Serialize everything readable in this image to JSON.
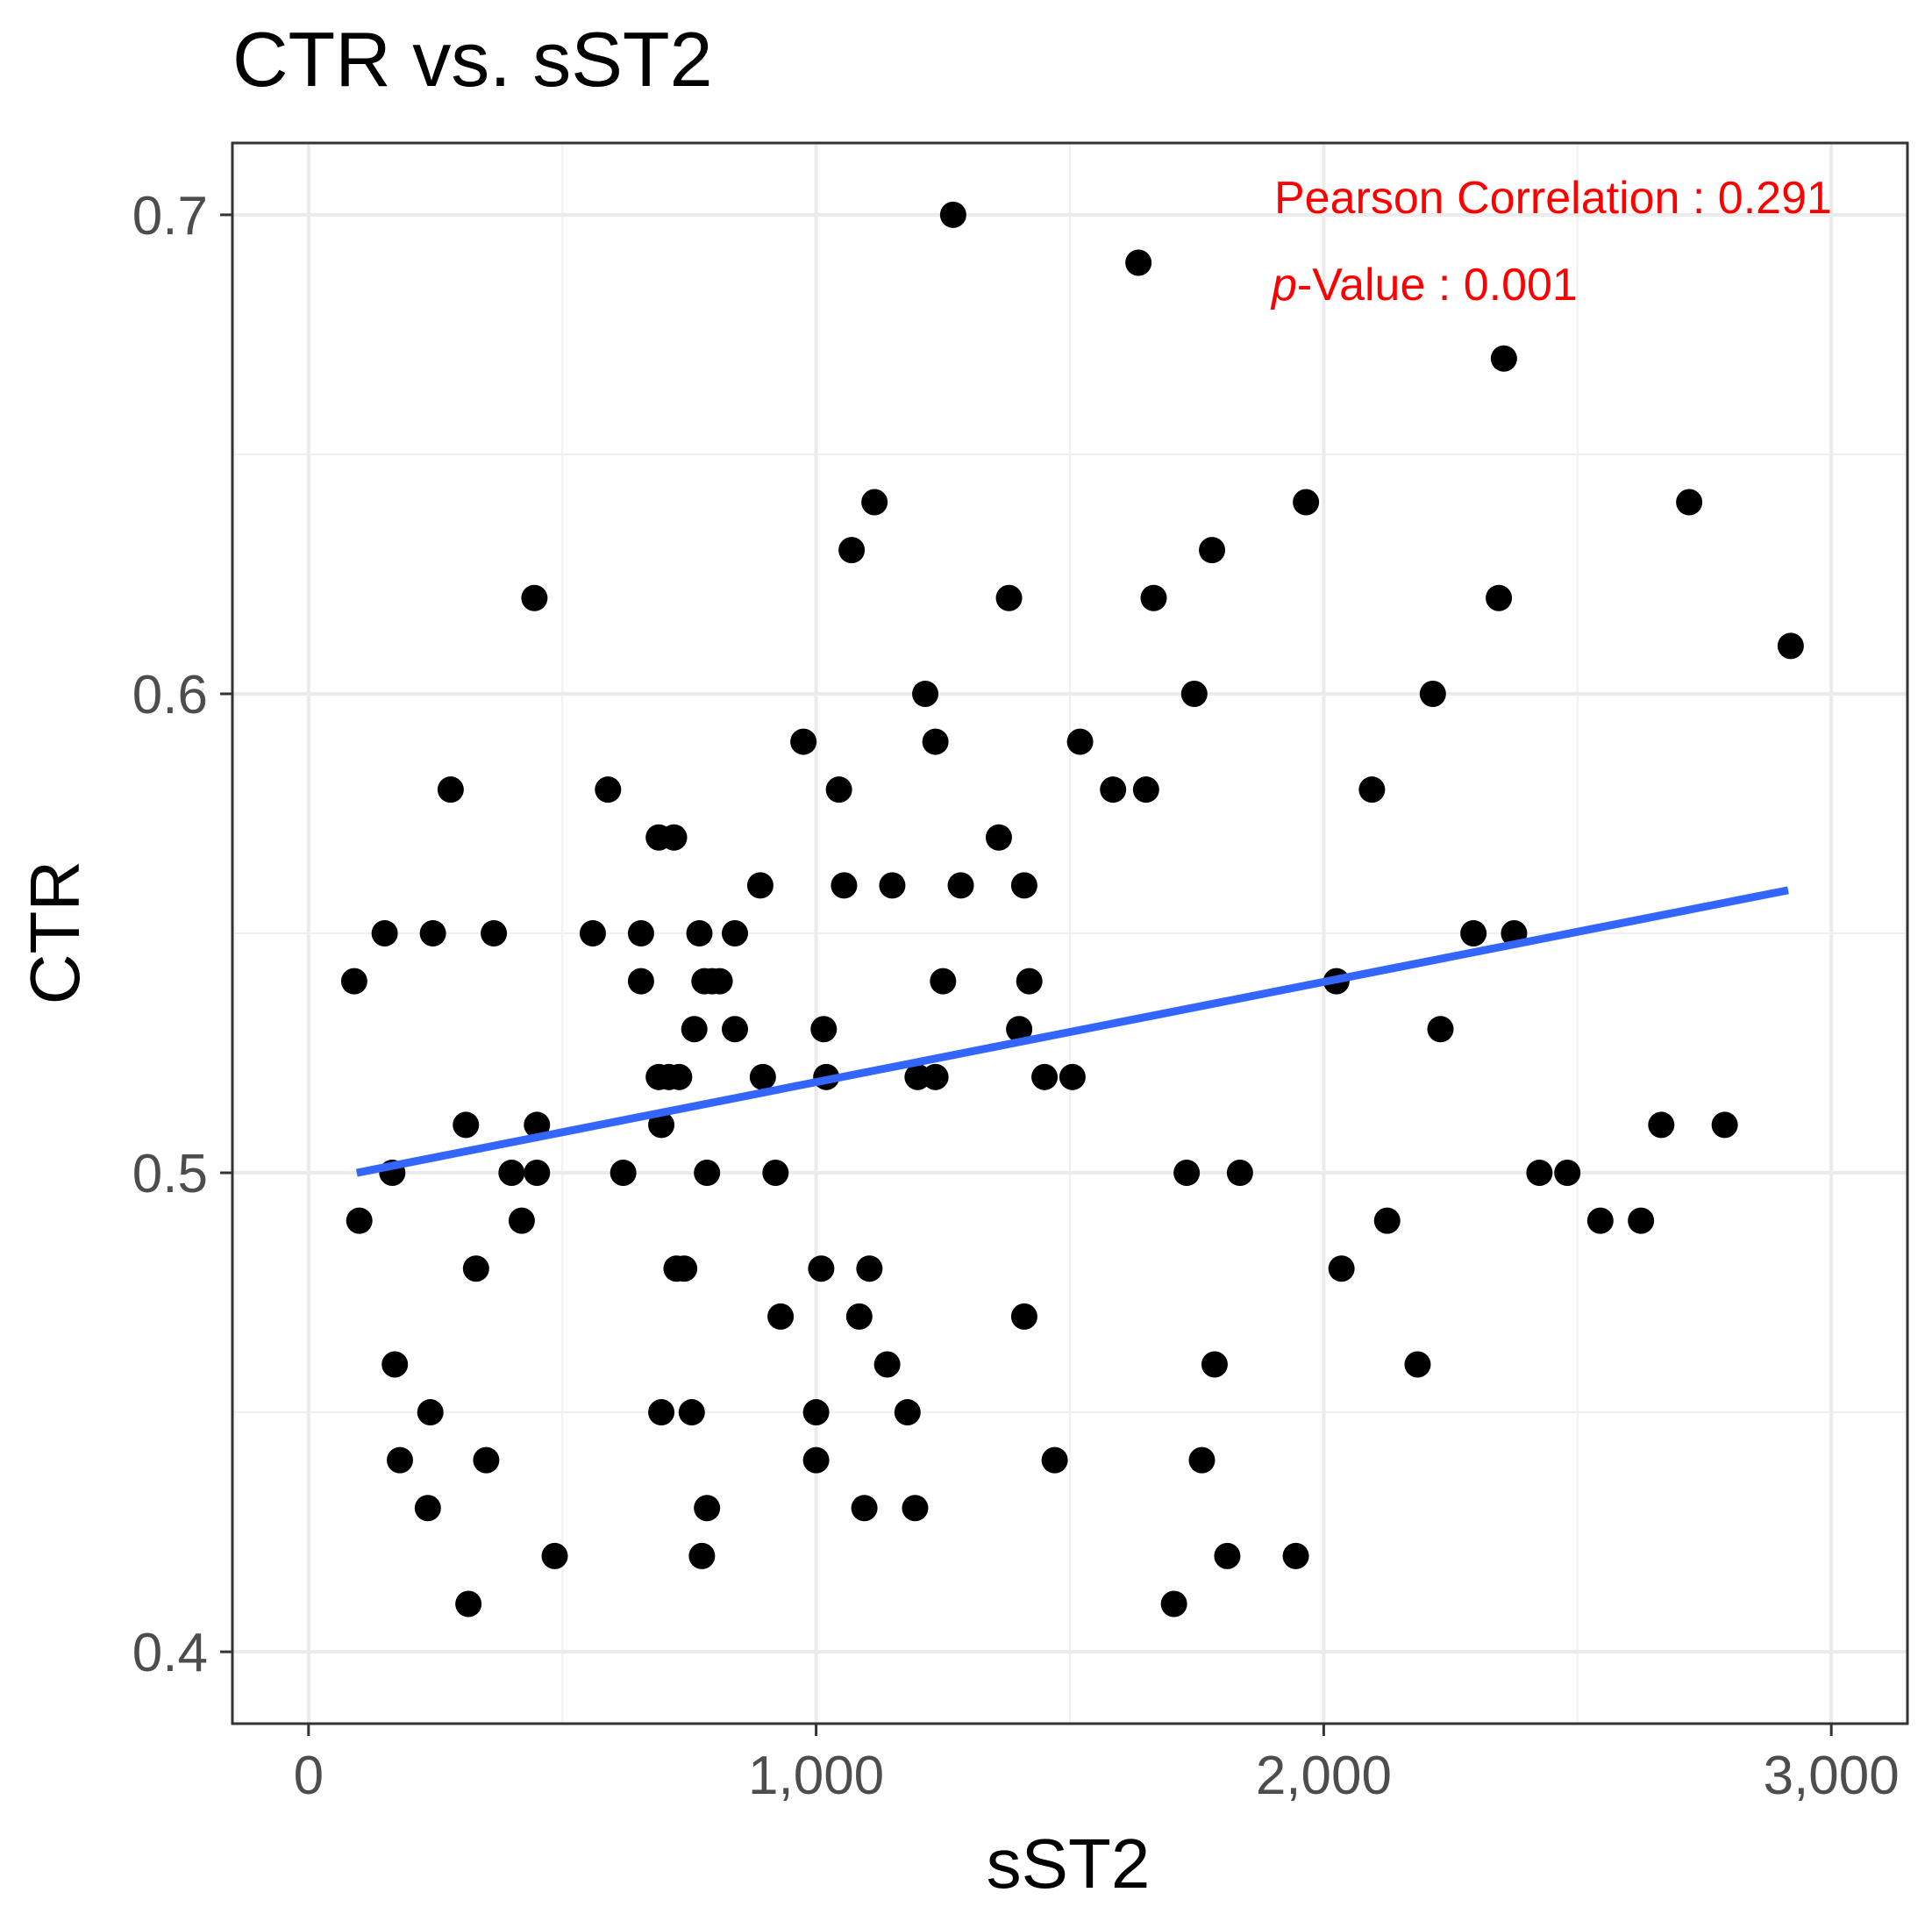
{
  "chart_data": {
    "type": "scatter",
    "title": "CTR vs. sST2",
    "xlabel": "sST2",
    "ylabel": "CTR",
    "xlim": [
      -150,
      3150
    ],
    "ylim": [
      0.385,
      0.715
    ],
    "xticks": [
      0,
      1000,
      2000,
      3000
    ],
    "xtick_labels": [
      "0",
      "1,000",
      "2,000",
      "3,000"
    ],
    "yticks": [
      0.4,
      0.5,
      0.6,
      0.7
    ],
    "ytick_labels": [
      "0.4",
      "0.5",
      "0.6",
      "0.7"
    ],
    "grid": true,
    "point_color": "#000000",
    "annotations": {
      "pearson_label": "Pearson Correlation : 0.291",
      "pvalue_italic": "p",
      "pvalue_rest": "-Value : 0.001",
      "color": "#ff0000"
    },
    "trend_line": {
      "color": "#3366ff",
      "x": [
        95,
        2915
      ],
      "y": [
        0.5,
        0.559
      ]
    },
    "points": [
      [
        90,
        0.54
      ],
      [
        100,
        0.49
      ],
      [
        150,
        0.55
      ],
      [
        165,
        0.5
      ],
      [
        170,
        0.46
      ],
      [
        180,
        0.44
      ],
      [
        235,
        0.43
      ],
      [
        240,
        0.45
      ],
      [
        245,
        0.55
      ],
      [
        280,
        0.58
      ],
      [
        310,
        0.51
      ],
      [
        315,
        0.41
      ],
      [
        330,
        0.48
      ],
      [
        350,
        0.44
      ],
      [
        365,
        0.55
      ],
      [
        400,
        0.5
      ],
      [
        420,
        0.49
      ],
      [
        445,
        0.62
      ],
      [
        450,
        0.51
      ],
      [
        450,
        0.5
      ],
      [
        485,
        0.42
      ],
      [
        560,
        0.55
      ],
      [
        590,
        0.58
      ],
      [
        620,
        0.5
      ],
      [
        655,
        0.55
      ],
      [
        655,
        0.54
      ],
      [
        690,
        0.57
      ],
      [
        690,
        0.52
      ],
      [
        695,
        0.51
      ],
      [
        695,
        0.45
      ],
      [
        710,
        0.52
      ],
      [
        720,
        0.57
      ],
      [
        725,
        0.48
      ],
      [
        730,
        0.52
      ],
      [
        740,
        0.48
      ],
      [
        755,
        0.45
      ],
      [
        760,
        0.53
      ],
      [
        770,
        0.55
      ],
      [
        775,
        0.42
      ],
      [
        780,
        0.54
      ],
      [
        785,
        0.5
      ],
      [
        785,
        0.43
      ],
      [
        795,
        0.54
      ],
      [
        810,
        0.54
      ],
      [
        840,
        0.55
      ],
      [
        840,
        0.53
      ],
      [
        890,
        0.56
      ],
      [
        895,
        0.52
      ],
      [
        920,
        0.5
      ],
      [
        930,
        0.47
      ],
      [
        975,
        0.59
      ],
      [
        1000,
        0.45
      ],
      [
        1000,
        0.44
      ],
      [
        1010,
        0.48
      ],
      [
        1015,
        0.53
      ],
      [
        1020,
        0.52
      ],
      [
        1045,
        0.58
      ],
      [
        1055,
        0.56
      ],
      [
        1070,
        0.63
      ],
      [
        1085,
        0.47
      ],
      [
        1095,
        0.43
      ],
      [
        1105,
        0.48
      ],
      [
        1115,
        0.64
      ],
      [
        1140,
        0.46
      ],
      [
        1150,
        0.56
      ],
      [
        1180,
        0.45
      ],
      [
        1195,
        0.43
      ],
      [
        1200,
        0.52
      ],
      [
        1215,
        0.6
      ],
      [
        1235,
        0.59
      ],
      [
        1235,
        0.52
      ],
      [
        1250,
        0.54
      ],
      [
        1270,
        0.7
      ],
      [
        1285,
        0.56
      ],
      [
        1360,
        0.57
      ],
      [
        1380,
        0.62
      ],
      [
        1400,
        0.53
      ],
      [
        1410,
        0.56
      ],
      [
        1410,
        0.47
      ],
      [
        1420,
        0.54
      ],
      [
        1450,
        0.52
      ],
      [
        1470,
        0.44
      ],
      [
        1505,
        0.52
      ],
      [
        1520,
        0.59
      ],
      [
        1585,
        0.58
      ],
      [
        1635,
        0.69
      ],
      [
        1650,
        0.58
      ],
      [
        1665,
        0.62
      ],
      [
        1705,
        0.41
      ],
      [
        1730,
        0.5
      ],
      [
        1745,
        0.6
      ],
      [
        1760,
        0.44
      ],
      [
        1780,
        0.63
      ],
      [
        1785,
        0.46
      ],
      [
        1810,
        0.42
      ],
      [
        1835,
        0.5
      ],
      [
        1945,
        0.42
      ],
      [
        1965,
        0.64
      ],
      [
        2025,
        0.54
      ],
      [
        2035,
        0.48
      ],
      [
        2095,
        0.58
      ],
      [
        2125,
        0.49
      ],
      [
        2185,
        0.46
      ],
      [
        2215,
        0.6
      ],
      [
        2230,
        0.53
      ],
      [
        2295,
        0.55
      ],
      [
        2345,
        0.62
      ],
      [
        2355,
        0.67
      ],
      [
        2375,
        0.55
      ],
      [
        2425,
        0.5
      ],
      [
        2480,
        0.5
      ],
      [
        2545,
        0.49
      ],
      [
        2625,
        0.49
      ],
      [
        2665,
        0.51
      ],
      [
        2720,
        0.64
      ],
      [
        2790,
        0.51
      ],
      [
        2920,
        0.61
      ]
    ]
  }
}
